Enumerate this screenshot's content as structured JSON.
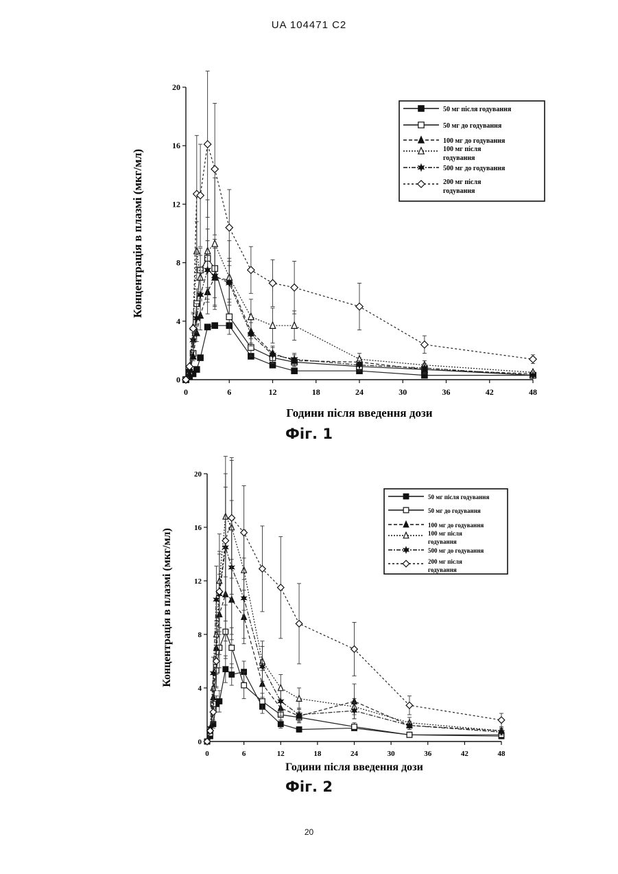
{
  "header": "UA   104471   C2",
  "page_number": "20",
  "chart_data": [
    {
      "type": "line",
      "caption": "Фіг. 1",
      "xlabel": "Години після введення дози",
      "ylabel": "Концентрація в плазмі (мкг/мл)",
      "xlim": [
        0,
        48
      ],
      "ylim": [
        0,
        20
      ],
      "xticks": [
        "0",
        "6",
        "12",
        "18",
        "24",
        "30",
        "36",
        "42",
        "48"
      ],
      "yticks": [
        "0",
        "4",
        "8",
        "12",
        "16",
        "20"
      ],
      "legend_position": "top-right",
      "series": [
        {
          "name": "50 мг після годування",
          "marker": "square-filled",
          "dash": "",
          "points": [
            [
              0,
              0
            ],
            [
              0.5,
              0.2
            ],
            [
              1,
              0.4
            ],
            [
              1.5,
              0.7
            ],
            [
              2,
              1.5
            ],
            [
              3,
              3.6
            ],
            [
              4,
              3.7
            ],
            [
              6,
              3.7
            ],
            [
              9,
              1.6
            ],
            [
              12,
              1
            ],
            [
              15,
              0.6
            ],
            [
              24,
              0.6
            ],
            [
              33,
              0.3
            ],
            [
              48,
              0.3
            ]
          ]
        },
        {
          "name": "50 мг до годування",
          "marker": "square-open",
          "dash": "",
          "points": [
            [
              0,
              0
            ],
            [
              0.5,
              0.5
            ],
            [
              1,
              1.8
            ],
            [
              1.5,
              5.2
            ],
            [
              2,
              7.5
            ],
            [
              3,
              8.3
            ],
            [
              4,
              7.6
            ],
            [
              6,
              4.3
            ],
            [
              9,
              2.2
            ],
            [
              12,
              1.5
            ],
            [
              15,
              1.2
            ],
            [
              24,
              0.9
            ],
            [
              33,
              0.7
            ],
            [
              48,
              0.3
            ]
          ],
          "err": [
            0,
            0,
            0,
            1.0,
            1.5,
            2.0,
            2.0,
            1.2,
            0.6,
            0.4,
            0.3,
            0.3,
            0.3,
            0.1
          ]
        },
        {
          "name": "100 мг до годування",
          "marker": "triangle-filled",
          "dash": "5 3",
          "points": [
            [
              0,
              0
            ],
            [
              0.5,
              0.4
            ],
            [
              1,
              1.6
            ],
            [
              1.5,
              3.2
            ],
            [
              2,
              4.4
            ],
            [
              3,
              6.0
            ],
            [
              4,
              7.0
            ],
            [
              6,
              6.8
            ],
            [
              9,
              3.3
            ],
            [
              12,
              1.8
            ],
            [
              15,
              1.3
            ],
            [
              24,
              1.2
            ],
            [
              33,
              0.7
            ],
            [
              48,
              0.4
            ]
          ],
          "err": [
            0,
            0,
            0.3,
            0.6,
            1.0,
            1.5,
            2.0,
            1.5,
            0.8,
            0.5,
            0.4,
            0.3,
            0.3,
            0.1
          ]
        },
        {
          "name": "100 мг після годування",
          "marker": "triangle-open",
          "dash": "2 2",
          "points": [
            [
              0,
              0
            ],
            [
              0.5,
              0.8
            ],
            [
              1,
              3.6
            ],
            [
              1.5,
              8.8
            ],
            [
              2,
              7.0
            ],
            [
              3,
              8.8
            ],
            [
              4,
              9.3
            ],
            [
              6,
              7.0
            ],
            [
              9,
              4.3
            ],
            [
              12,
              3.7
            ],
            [
              15,
              3.7
            ],
            [
              24,
              1.4
            ],
            [
              33,
              1.0
            ],
            [
              48,
              0.5
            ]
          ],
          "err": [
            0,
            0,
            1.0,
            2.0,
            1.5,
            3.5,
            4.5,
            2.5,
            1.2,
            1.2,
            1.0,
            0.4,
            0.3,
            0.1
          ]
        },
        {
          "name": "500 мг до годування",
          "marker": "star-filled",
          "dash": "6 2 2 2",
          "points": [
            [
              0,
              0
            ],
            [
              0.5,
              0.6
            ],
            [
              1,
              2.7
            ],
            [
              1.5,
              4.2
            ],
            [
              2,
              5.8
            ],
            [
              3,
              7.5
            ],
            [
              4,
              7.1
            ],
            [
              6,
              6.6
            ],
            [
              9,
              3.1
            ],
            [
              12,
              1.7
            ],
            [
              15,
              1.4
            ],
            [
              24,
              1.0
            ],
            [
              33,
              0.8
            ],
            [
              48,
              0.3
            ]
          ],
          "err": [
            0,
            0,
            0.5,
            1.0,
            1.5,
            2.0,
            2.0,
            1.5,
            0.8,
            0.5,
            0.4,
            0.3,
            0.3,
            0.1
          ]
        },
        {
          "name": "200 мг після годування",
          "marker": "diamond-open",
          "dash": "3 3",
          "points": [
            [
              0,
              0
            ],
            [
              0.5,
              0.9
            ],
            [
              1,
              3.5
            ],
            [
              1.5,
              12.7
            ],
            [
              2,
              12.6
            ],
            [
              3,
              16.1
            ],
            [
              4,
              14.4
            ],
            [
              6,
              10.4
            ],
            [
              9,
              7.5
            ],
            [
              12,
              6.6
            ],
            [
              15,
              6.3
            ],
            [
              24,
              5.0
            ],
            [
              33,
              2.4
            ],
            [
              48,
              1.4
            ]
          ],
          "err": [
            0,
            0,
            1.0,
            4.0,
            3.5,
            5.0,
            4.5,
            2.6,
            1.6,
            1.6,
            1.8,
            1.6,
            0.6,
            0.3
          ]
        }
      ]
    },
    {
      "type": "line",
      "caption": "Фіг. 2",
      "xlabel": "Години після введення дози",
      "ylabel": "Концентрація в плазмі (мкг/мл)",
      "xlim": [
        0,
        48
      ],
      "ylim": [
        0,
        20
      ],
      "xticks": [
        "0",
        "6",
        "12",
        "18",
        "24",
        "30",
        "36",
        "42",
        "48"
      ],
      "yticks": [
        "0",
        "4",
        "8",
        "12",
        "16",
        "20"
      ],
      "legend_position": "top-right",
      "series": [
        {
          "name": "50 мг після годування",
          "marker": "square-filled",
          "dash": "",
          "points": [
            [
              0,
              0
            ],
            [
              0.5,
              0.4
            ],
            [
              1,
              1.3
            ],
            [
              1.5,
              2.8
            ],
            [
              2,
              3.0
            ],
            [
              3,
              5.4
            ],
            [
              4,
              5.0
            ],
            [
              6,
              5.2
            ],
            [
              9,
              2.6
            ],
            [
              12,
              1.3
            ],
            [
              15,
              0.9
            ],
            [
              24,
              1.0
            ],
            [
              33,
              0.5
            ],
            [
              48,
              0.4
            ]
          ],
          "err": [
            0,
            0,
            0.3,
            0.6,
            0.8,
            1.0,
            0.8,
            0.8,
            0.5,
            0.3,
            0.2,
            0.2,
            0.1,
            0.1
          ]
        },
        {
          "name": "50 мг до годування",
          "marker": "square-open",
          "dash": "",
          "points": [
            [
              0,
              0
            ],
            [
              0.5,
              0.6
            ],
            [
              1,
              2.8
            ],
            [
              1.5,
              5.3
            ],
            [
              2,
              7.0
            ],
            [
              3,
              8.2
            ],
            [
              4,
              7.0
            ],
            [
              6,
              4.2
            ],
            [
              9,
              3.0
            ],
            [
              12,
              2.0
            ],
            [
              15,
              1.8
            ],
            [
              24,
              1.1
            ],
            [
              33,
              0.5
            ],
            [
              48,
              0.5
            ]
          ],
          "err": [
            0,
            0,
            0.5,
            1.2,
            1.5,
            2.0,
            1.5,
            1.0,
            0.6,
            0.4,
            0.4,
            0.3,
            0.1,
            0.1
          ]
        },
        {
          "name": "100 мг до годування",
          "marker": "triangle-filled",
          "dash": "5 3",
          "points": [
            [
              0,
              0
            ],
            [
              0.5,
              0.8
            ],
            [
              1,
              3.3
            ],
            [
              1.5,
              7.0
            ],
            [
              2,
              9.5
            ],
            [
              3,
              11.0
            ],
            [
              4,
              10.6
            ],
            [
              6,
              9.3
            ],
            [
              9,
              4.3
            ],
            [
              12,
              2.5
            ],
            [
              15,
              1.9
            ],
            [
              24,
              3.0
            ],
            [
              33,
              1.2
            ],
            [
              48,
              0.8
            ]
          ],
          "err": [
            0,
            0,
            0.8,
            2.0,
            3.0,
            3.5,
            3.0,
            2.0,
            1.0,
            0.6,
            0.5,
            1.3,
            0.3,
            0.2
          ]
        },
        {
          "name": "100 мг після годування",
          "marker": "triangle-open",
          "dash": "2 2",
          "points": [
            [
              0,
              0
            ],
            [
              0.5,
              1.0
            ],
            [
              1,
              4.0
            ],
            [
              1.5,
              8.0
            ],
            [
              2,
              12.0
            ],
            [
              3,
              16.8
            ],
            [
              4,
              16.0
            ],
            [
              6,
              12.8
            ],
            [
              9,
              6.0
            ],
            [
              12,
              4.0
            ],
            [
              15,
              3.2
            ],
            [
              24,
              2.6
            ],
            [
              33,
              1.4
            ],
            [
              48,
              0.8
            ]
          ],
          "err": [
            0,
            0,
            1.0,
            2.5,
            3.5,
            4.5,
            5.0,
            3.0,
            1.5,
            1.0,
            0.8,
            0.6,
            0.4,
            0.2
          ]
        },
        {
          "name": "500 мг до годування",
          "marker": "star-filled",
          "dash": "6 2 2 2",
          "points": [
            [
              0,
              0
            ],
            [
              0.5,
              1.0
            ],
            [
              1,
              5.1
            ],
            [
              1.5,
              10.6
            ],
            [
              2,
              11.0
            ],
            [
              3,
              14.5
            ],
            [
              4,
              13.0
            ],
            [
              6,
              10.7
            ],
            [
              9,
              5.6
            ],
            [
              12,
              3.0
            ],
            [
              15,
              2.0
            ],
            [
              24,
              2.3
            ],
            [
              33,
              1.2
            ],
            [
              48,
              0.7
            ]
          ],
          "err": [
            0,
            0,
            1.2,
            2.5,
            3.0,
            5.5,
            5.0,
            3.0,
            1.5,
            0.8,
            0.5,
            0.6,
            0.3,
            0.2
          ]
        },
        {
          "name": "200 мг після годування",
          "marker": "diamond-open",
          "dash": "3 3",
          "points": [
            [
              0,
              0
            ],
            [
              0.5,
              0.8
            ],
            [
              1,
              2.2
            ],
            [
              1.5,
              6.0
            ],
            [
              2,
              11.2
            ],
            [
              3,
              15.0
            ],
            [
              4,
              16.7
            ],
            [
              6,
              15.6
            ],
            [
              9,
              12.9
            ],
            [
              12,
              11.5
            ],
            [
              15,
              8.8
            ],
            [
              24,
              6.9
            ],
            [
              33,
              2.7
            ],
            [
              48,
              1.6
            ]
          ],
          "err": [
            0,
            0,
            0.8,
            2.0,
            3.0,
            4.0,
            4.5,
            3.5,
            3.2,
            3.8,
            3.0,
            2.0,
            0.7,
            0.5
          ]
        }
      ]
    }
  ]
}
